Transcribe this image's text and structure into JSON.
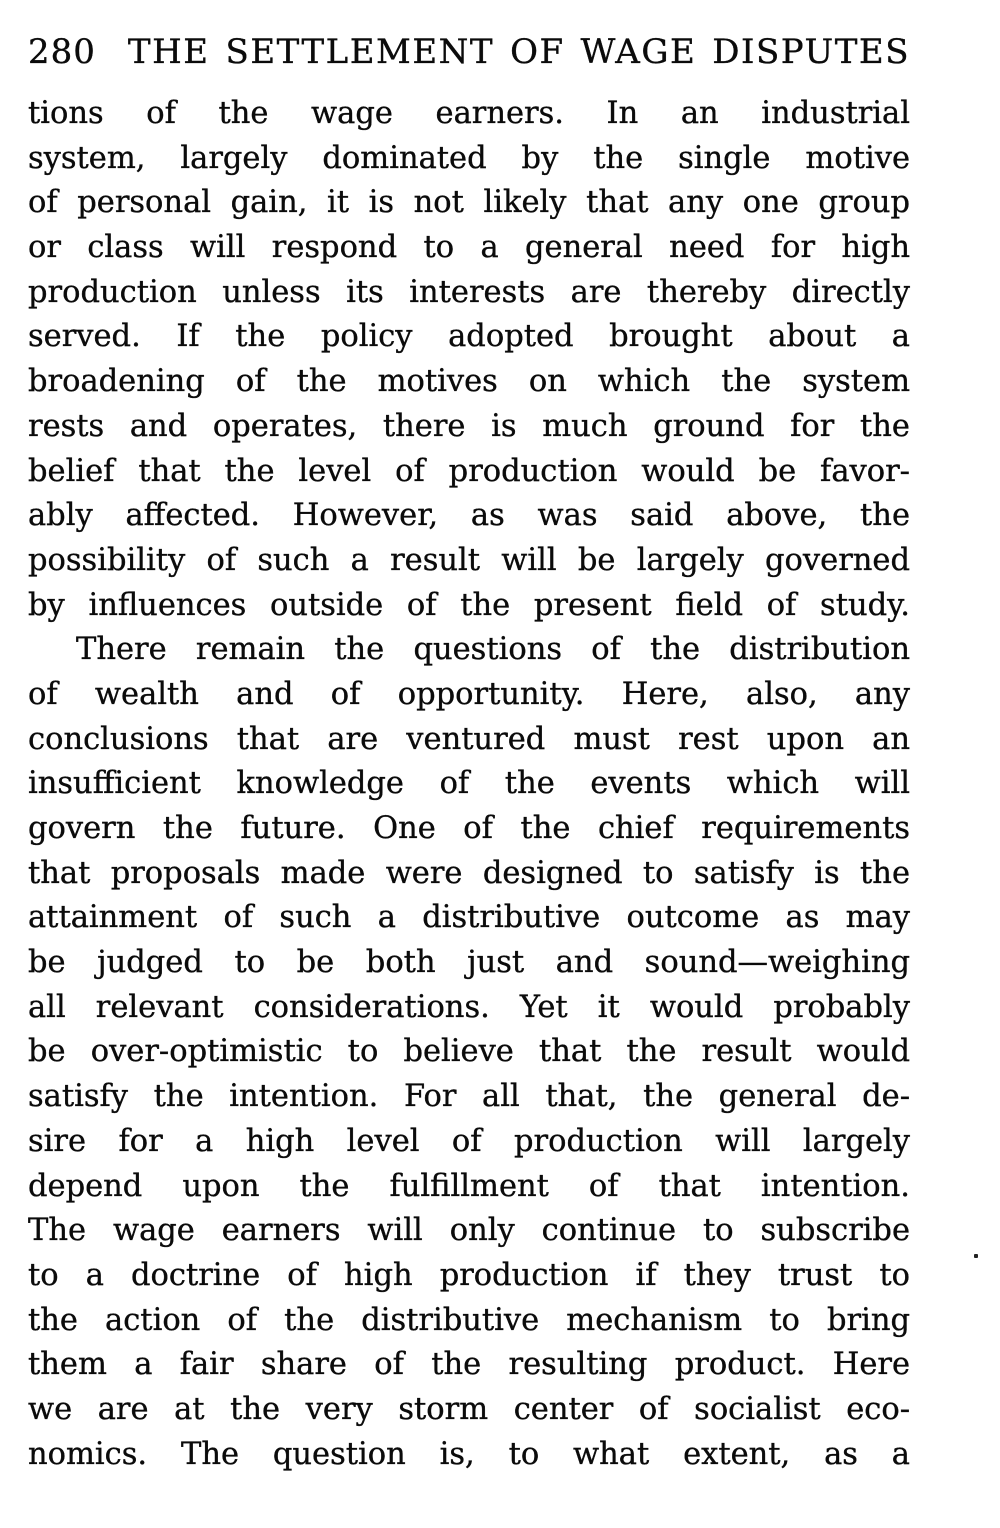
{
  "page": {
    "colors": {
      "paper": "#ffffff",
      "ink": "#0b0b0b"
    },
    "header": {
      "page_number": "280",
      "title": "THE SETTLEMENT OF WAGE DISPUTES"
    },
    "body": {
      "lines": [
        "tions of the wage earners. In an industrial",
        "system, largely dominated by the single motive",
        "of personal gain, it is not likely that any one group",
        "or class will respond to a general need for high",
        "production unless its interests are thereby directly",
        "served. If the policy adopted brought about a",
        "broadening of the motives on which the system",
        "rests and operates, there is much ground for the",
        "belief that the level of production would be favor-",
        "ably affected. However, as was said above, the",
        "possibility of such a result will be largely governed",
        "by influences outside of the present field of study.",
        "There remain the questions of the distribution",
        "of wealth and of opportunity. Here, also, any",
        "conclusions that are ventured must rest upon an",
        "insufficient knowledge of the events which will",
        "govern the future. One of the chief requirements",
        "that proposals made were designed to satisfy is the",
        "attainment of such a distributive outcome as may",
        "be judged to be both just and sound—weighing",
        "all relevant considerations. Yet it would probably",
        "be over-optimistic to believe that the result would",
        "satisfy the intention. For all that, the general de-",
        "sire for a high level of production will largely",
        "depend upon the fulfillment of that intention.",
        "The wage earners will only continue to subscribe",
        "to a doctrine of high production if they trust to",
        "the action of the distributive mechanism to bring",
        "them a fair share of the resulting product. Here",
        "we are at the very storm center of socialist eco-",
        "nomics. The question is, to what extent, as a"
      ]
    }
  }
}
